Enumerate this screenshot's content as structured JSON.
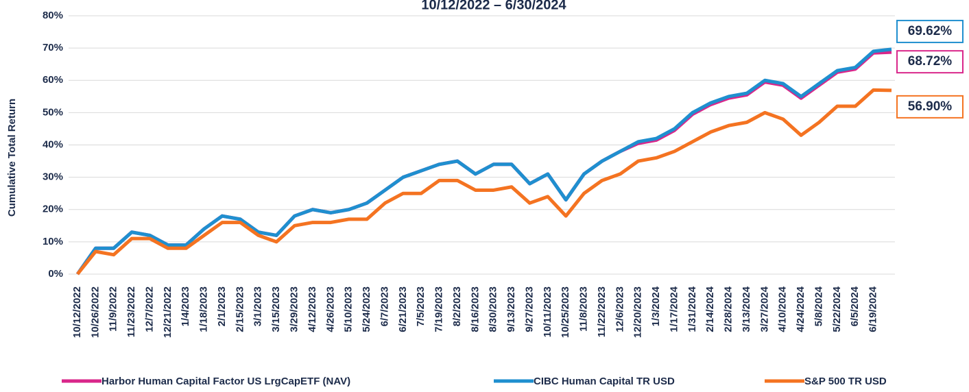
{
  "chart_data": {
    "type": "line",
    "title": "10/12/2022 – 6/30/2024",
    "y_label": "Cumulative Total Return",
    "categories": [
      "10/12/2022",
      "10/26/2022",
      "11/9/2022",
      "11/23/2022",
      "12/7/2022",
      "12/21/2022",
      "1/4/2023",
      "1/18/2023",
      "2/1/2023",
      "2/15/2023",
      "3/1/2023",
      "3/15/2023",
      "3/29/2023",
      "4/12/2023",
      "4/26/2023",
      "5/10/2023",
      "5/24/2023",
      "6/7/2023",
      "6/21/2023",
      "7/5/2023",
      "7/19/2023",
      "8/2/2023",
      "8/16/2023",
      "8/30/2023",
      "9/13/2023",
      "9/27/2023",
      "10/11/2023",
      "10/25/2023",
      "11/8/2023",
      "11/22/2023",
      "12/6/2023",
      "12/20/2023",
      "1/3/2024",
      "1/17/2024",
      "1/31/2024",
      "2/14/2024",
      "2/28/2024",
      "3/13/2024",
      "3/27/2024",
      "4/10/2024",
      "4/24/2024",
      "5/8/2024",
      "5/22/2024",
      "6/5/2024",
      "6/19/2024",
      null
    ],
    "series": [
      {
        "name": "Harbor Human Capital Factor US LrgCapETF (NAV)",
        "color": "#d9268a",
        "values": [
          0,
          8,
          8,
          13,
          12,
          9,
          9,
          14,
          18,
          17,
          13,
          12,
          18,
          20,
          19,
          20,
          22,
          26,
          30,
          32,
          34,
          35,
          31,
          34,
          34,
          28,
          31,
          23,
          31,
          35,
          38,
          40.5,
          41.5,
          44.5,
          49.5,
          52.5,
          54.5,
          55.5,
          59.5,
          58.5,
          54.5,
          58.5,
          62.5,
          63.5,
          68.5,
          68.72
        ],
        "value_labels": [
          null,
          null,
          null,
          null,
          null,
          null,
          null,
          null,
          null,
          null,
          null,
          null,
          null,
          null,
          null,
          null,
          null,
          null,
          null,
          null,
          null,
          null,
          null,
          null,
          null,
          null,
          null,
          null,
          null,
          null,
          null,
          null,
          null,
          null,
          null,
          null,
          null,
          null,
          null,
          null,
          null,
          null,
          null,
          null,
          null,
          "68.72%"
        ]
      },
      {
        "name": "CIBC Human Capital TR USD",
        "color": "#1f8fcf",
        "values": [
          0,
          8,
          8,
          13,
          12,
          9,
          9,
          14,
          18,
          17,
          13,
          12,
          18,
          20,
          19,
          20,
          22,
          26,
          30,
          32,
          34,
          35,
          31,
          34,
          34,
          28,
          31,
          23,
          31,
          35,
          38,
          41,
          42,
          45,
          50,
          53,
          55,
          56,
          60,
          59,
          55,
          59,
          63,
          64,
          69,
          69.62
        ],
        "value_labels": [
          null,
          null,
          null,
          null,
          null,
          null,
          null,
          null,
          null,
          null,
          null,
          null,
          null,
          null,
          null,
          null,
          null,
          null,
          null,
          null,
          null,
          null,
          null,
          null,
          null,
          null,
          null,
          null,
          null,
          null,
          null,
          null,
          null,
          null,
          null,
          null,
          null,
          null,
          null,
          null,
          null,
          null,
          null,
          null,
          null,
          "69.62%"
        ]
      },
      {
        "name": "S&P 500 TR USD",
        "color": "#f47321",
        "values": [
          0,
          7,
          6,
          11,
          11,
          8,
          8,
          12,
          16,
          16,
          12,
          10,
          15,
          16,
          16,
          17,
          17,
          22,
          25,
          25,
          29,
          29,
          26,
          26,
          27,
          22,
          24,
          18,
          25,
          29,
          31,
          35,
          36,
          38,
          41,
          44,
          46,
          47,
          50,
          48,
          43,
          47,
          52,
          52,
          57,
          56.9
        ],
        "value_labels": [
          null,
          null,
          null,
          null,
          null,
          null,
          null,
          null,
          null,
          null,
          null,
          null,
          null,
          null,
          null,
          null,
          null,
          null,
          null,
          null,
          null,
          null,
          null,
          null,
          null,
          null,
          null,
          null,
          null,
          null,
          null,
          null,
          null,
          null,
          null,
          null,
          null,
          null,
          null,
          null,
          null,
          null,
          null,
          null,
          null,
          "56.90%"
        ]
      }
    ],
    "ylim": [
      0,
      80
    ],
    "yticks": [
      {
        "value": 0,
        "label": "0%"
      },
      {
        "value": 10,
        "label": "10%"
      },
      {
        "value": 20,
        "label": "20%"
      },
      {
        "value": 30,
        "label": "30%"
      },
      {
        "value": 40,
        "label": "40%"
      },
      {
        "value": 50,
        "label": "50%"
      },
      {
        "value": 60,
        "label": "60%"
      },
      {
        "value": 70,
        "label": "70%"
      },
      {
        "value": 80,
        "label": "80%"
      }
    ],
    "grid": true,
    "legend": "bottom"
  }
}
